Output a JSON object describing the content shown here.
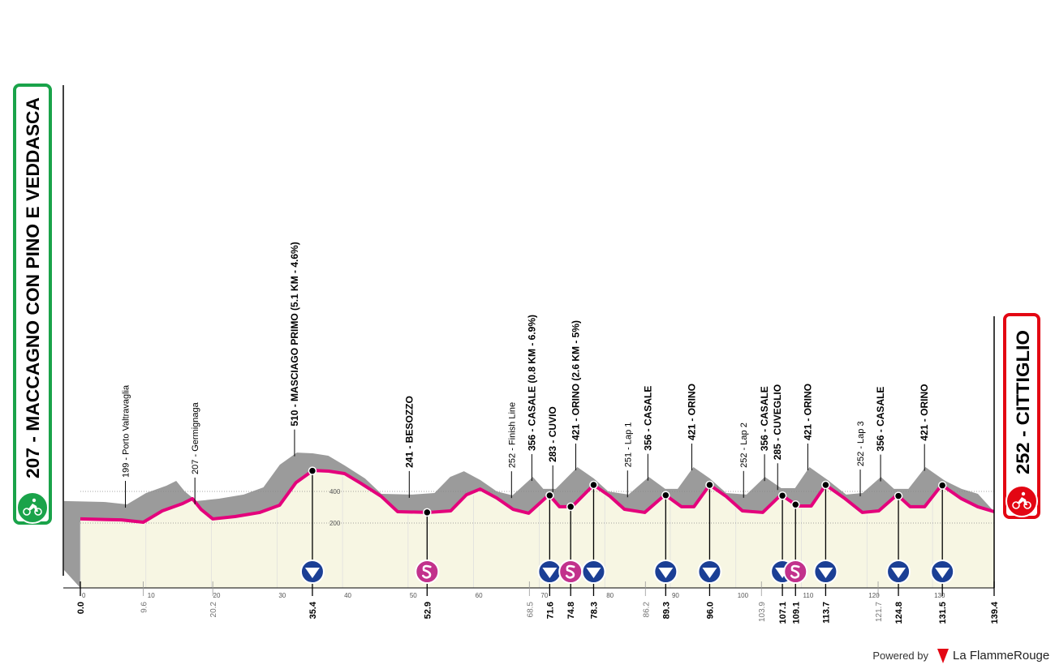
{
  "chart_data": {
    "type": "profile",
    "start_label": "207 - MACCAGNO CON PINO E VEDDASCA",
    "finish_label": "252 - CITTIGLIO",
    "color": "#e4007c",
    "shade_color": "#9b9b9b",
    "fill_color": "#f7f6e3",
    "x": [
      0,
      6.3,
      9.6,
      12.5,
      15.6,
      17.1,
      18.4,
      20.2,
      23.6,
      27.4,
      30.4,
      32.9,
      35.5,
      37.9,
      40.3,
      42.8,
      45.9,
      48.4,
      53.1,
      56.5,
      58.9,
      61.0,
      63.5,
      66.0,
      68.4,
      71.5,
      73.1,
      75.0,
      78.3,
      80.8,
      83.0,
      86.1,
      89.2,
      91.7,
      93.6,
      96.0,
      98.5,
      101.0,
      104.1,
      106.9,
      109.4,
      111.5,
      113.7,
      116.5,
      119.3,
      121.8,
      124.6,
      126.6,
      128.8,
      131.4,
      134.4,
      136.9,
      139.4
    ],
    "values": [
      226,
      220,
      205,
      277,
      323,
      354,
      287,
      226,
      241,
      267,
      313,
      456,
      533,
      528,
      513,
      451,
      369,
      272,
      267,
      277,
      379,
      415,
      359,
      287,
      262,
      379,
      303,
      303,
      441,
      369,
      287,
      267,
      379,
      303,
      303,
      441,
      369,
      277,
      267,
      379,
      308,
      308,
      441,
      359,
      267,
      277,
      379,
      303,
      303,
      441,
      354,
      303,
      272
    ],
    "xlim": [
      0,
      139.4
    ],
    "xticks": [
      0,
      10,
      20,
      30,
      40,
      50,
      60,
      70,
      80,
      90,
      100,
      110,
      120,
      130
    ],
    "ylim": [
      -200,
      1000
    ],
    "yticks": [
      200,
      400
    ],
    "waypoints": [
      {
        "x": 0,
        "x_label": "0.0",
        "kind": "major"
      },
      {
        "x": 9.6,
        "x_label": "9.6",
        "kind": "minor",
        "label": "199 - Porto Valtravaglia"
      },
      {
        "x": 20.2,
        "x_label": "20.2",
        "kind": "minor",
        "label": "207 - Germignaga"
      },
      {
        "x": 35.4,
        "x_label": "35.4",
        "kind": "major",
        "label": "510 - MASCIAGO PRIMO (5.1 KM - 4.6%)",
        "icon": "kom"
      },
      {
        "x": 52.9,
        "x_label": "52.9",
        "kind": "major",
        "label": "241 - BESOZZO",
        "icon": "sprint"
      },
      {
        "x": 68.5,
        "x_label": "68.5",
        "kind": "minor",
        "label": "252 - Finish Line"
      },
      {
        "x": 71.6,
        "x_label": "71.6",
        "kind": "major",
        "label": "356 - CASALE (0.8 KM - 6.9%)",
        "icon": "kom"
      },
      {
        "x": 74.8,
        "x_label": "74.8",
        "kind": "major",
        "label": "283 - CUVIO",
        "icon": "sprint"
      },
      {
        "x": 78.3,
        "x_label": "78.3",
        "kind": "major",
        "label": "421 - ORINO (2.6 KM - 5%)",
        "icon": "kom"
      },
      {
        "x": 86.2,
        "x_label": "86.2",
        "kind": "minor",
        "label": "251 - Lap 1"
      },
      {
        "x": 89.3,
        "x_label": "89.3",
        "kind": "major",
        "label": "356 - CASALE",
        "icon": "kom"
      },
      {
        "x": 96.0,
        "x_label": "96.0",
        "kind": "major",
        "label": "421 - ORINO",
        "icon": "kom"
      },
      {
        "x": 103.9,
        "x_label": "103.9",
        "kind": "minor",
        "label": "252 - Lap 2"
      },
      {
        "x": 107.1,
        "x_label": "107.1",
        "kind": "major",
        "label": "356 - CASALE",
        "icon": "kom"
      },
      {
        "x": 109.1,
        "x_label": "109.1",
        "kind": "major",
        "label": "285 - CUVEGLIO",
        "icon": "sprint"
      },
      {
        "x": 113.7,
        "x_label": "113.7",
        "kind": "major",
        "label": "421 - ORINO",
        "icon": "kom"
      },
      {
        "x": 121.7,
        "x_label": "121.7",
        "kind": "minor",
        "label": "252 - Lap 3"
      },
      {
        "x": 124.8,
        "x_label": "124.8",
        "kind": "major",
        "label": "356 - CASALE",
        "icon": "kom"
      },
      {
        "x": 131.5,
        "x_label": "131.5",
        "kind": "major",
        "label": "421 - ORINO",
        "icon": "kom"
      },
      {
        "x": 139.4,
        "x_label": "139.4",
        "kind": "major"
      }
    ],
    "powered_by": "Powered by",
    "brand": "La FlammeRouge"
  }
}
